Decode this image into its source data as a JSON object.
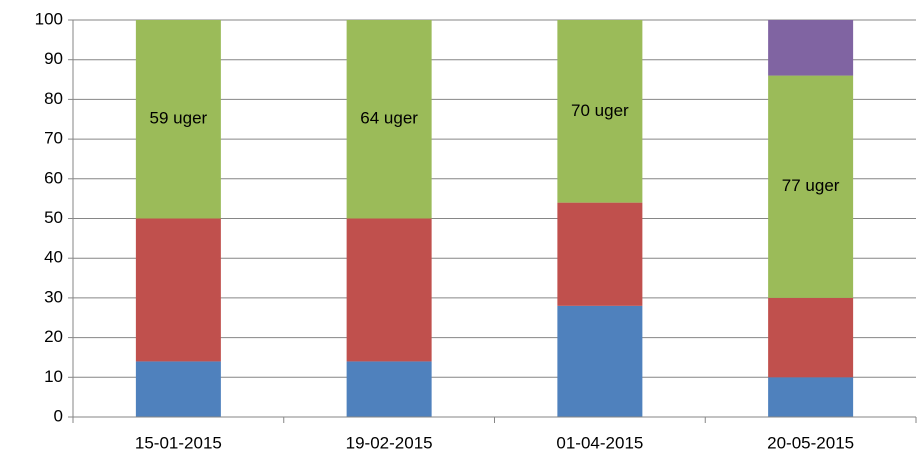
{
  "chart_data": {
    "type": "stacked_bar",
    "categories": [
      "15-01-2015",
      "19-02-2015",
      "01-04-2015",
      "20-05-2015"
    ],
    "series": [
      {
        "color": "#4f81bd",
        "values": [
          14,
          14,
          28,
          10
        ]
      },
      {
        "color": "#c0504d",
        "values": [
          36,
          36,
          26,
          20
        ]
      },
      {
        "color": "#9bbb59",
        "values": [
          50,
          50,
          46,
          56
        ]
      },
      {
        "color": "#8064a2",
        "values": [
          0,
          0,
          0,
          14
        ]
      }
    ],
    "annotations": [
      "59 uger",
      "64 uger",
      "70 uger",
      "77 uger"
    ],
    "annotation_series": 2,
    "ylim": [
      0,
      100
    ],
    "yticks": [
      0,
      10,
      20,
      30,
      40,
      50,
      60,
      70,
      80,
      90,
      100
    ],
    "grid": true
  }
}
